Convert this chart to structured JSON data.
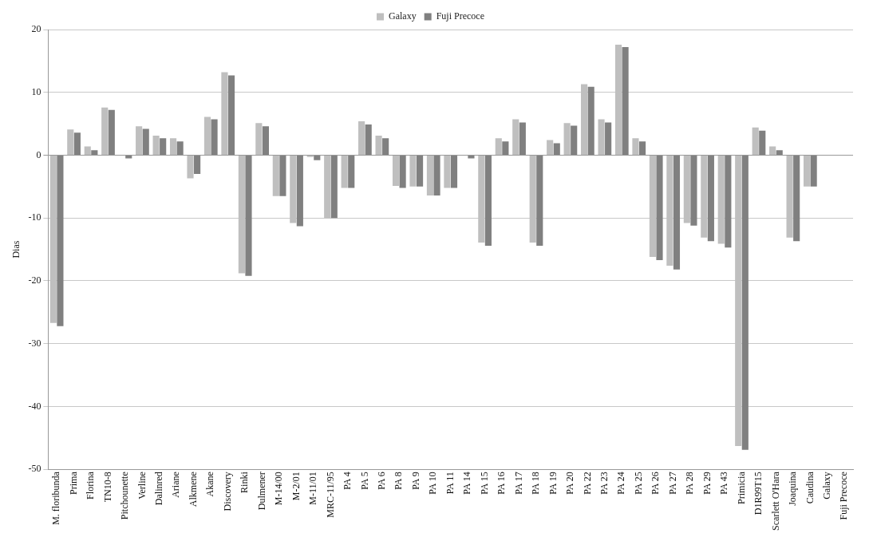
{
  "chart_data": {
    "type": "bar",
    "ylabel": "Dias",
    "categories": [
      "M. floribunda",
      "Prima",
      "Florina",
      "TN10-8",
      "Pitchounette",
      "Verline",
      "Dalinred",
      "Ariane",
      "Alkmene",
      "Akane",
      "Discovery",
      "Rinki",
      "Dulmener",
      "M-14/00",
      "M-2/01",
      "M-11/01",
      "MRC-11/95",
      "PA 4",
      "PA 5",
      "PA 6",
      "PA 8",
      "PA 9",
      "PA 10",
      "PA 11",
      "PA 14",
      "PA 15",
      "PA 16",
      "PA 17",
      "PA 18",
      "PA 19",
      "PA 20",
      "PA 22",
      "PA 23",
      "PA 24",
      "PA 25",
      "PA 26",
      "PA 27",
      "PA 28",
      "PA 29",
      "PA 43",
      "Primicia",
      "D1R99T15",
      "Scarlett O'Hara",
      "Joaquina",
      "Caudina",
      "Galaxy",
      "Fuji Precoce"
    ],
    "series": [
      {
        "name": "Galaxy",
        "color": "#bfbfbf",
        "values": [
          -26.7,
          4.1,
          1.4,
          7.6,
          0,
          4.6,
          3.1,
          2.7,
          -3.7,
          6.1,
          13.2,
          -18.8,
          5.1,
          -6.5,
          -10.8,
          -0.3,
          -10,
          -5.2,
          5.4,
          3.1,
          -4.9,
          -5,
          -6.4,
          -5.2,
          0,
          -13.9,
          2.7,
          5.7,
          -13.9,
          2.4,
          5.1,
          11.3,
          5.7,
          17.6,
          2.7,
          -16.2,
          -17.6,
          -10.8,
          -13.1,
          -14.1,
          -46.3,
          4.4,
          1.4,
          -13.1,
          -5,
          0,
          0
        ]
      },
      {
        "name": "Fuji Precoce",
        "color": "#808080",
        "values": [
          -27.2,
          3.6,
          0.8,
          7.2,
          -0.5,
          4.2,
          2.7,
          2.2,
          -3,
          5.7,
          12.7,
          -19.2,
          4.6,
          -6.5,
          -11.3,
          -0.8,
          -10,
          -5.2,
          4.9,
          2.7,
          -5.2,
          -5,
          -6.4,
          -5.2,
          -0.5,
          -14.4,
          2.2,
          5.2,
          -14.4,
          1.9,
          4.7,
          10.9,
          5.2,
          17.2,
          2.2,
          -16.7,
          -18.2,
          -11.2,
          -13.7,
          -14.7,
          -46.9,
          3.9,
          0.8,
          -13.7,
          -5,
          0,
          0
        ]
      }
    ],
    "ylim": [
      -50,
      20
    ],
    "yticks": [
      -50,
      -40,
      -30,
      -20,
      -10,
      0,
      10,
      20
    ],
    "grid": "y",
    "legend": "top"
  }
}
